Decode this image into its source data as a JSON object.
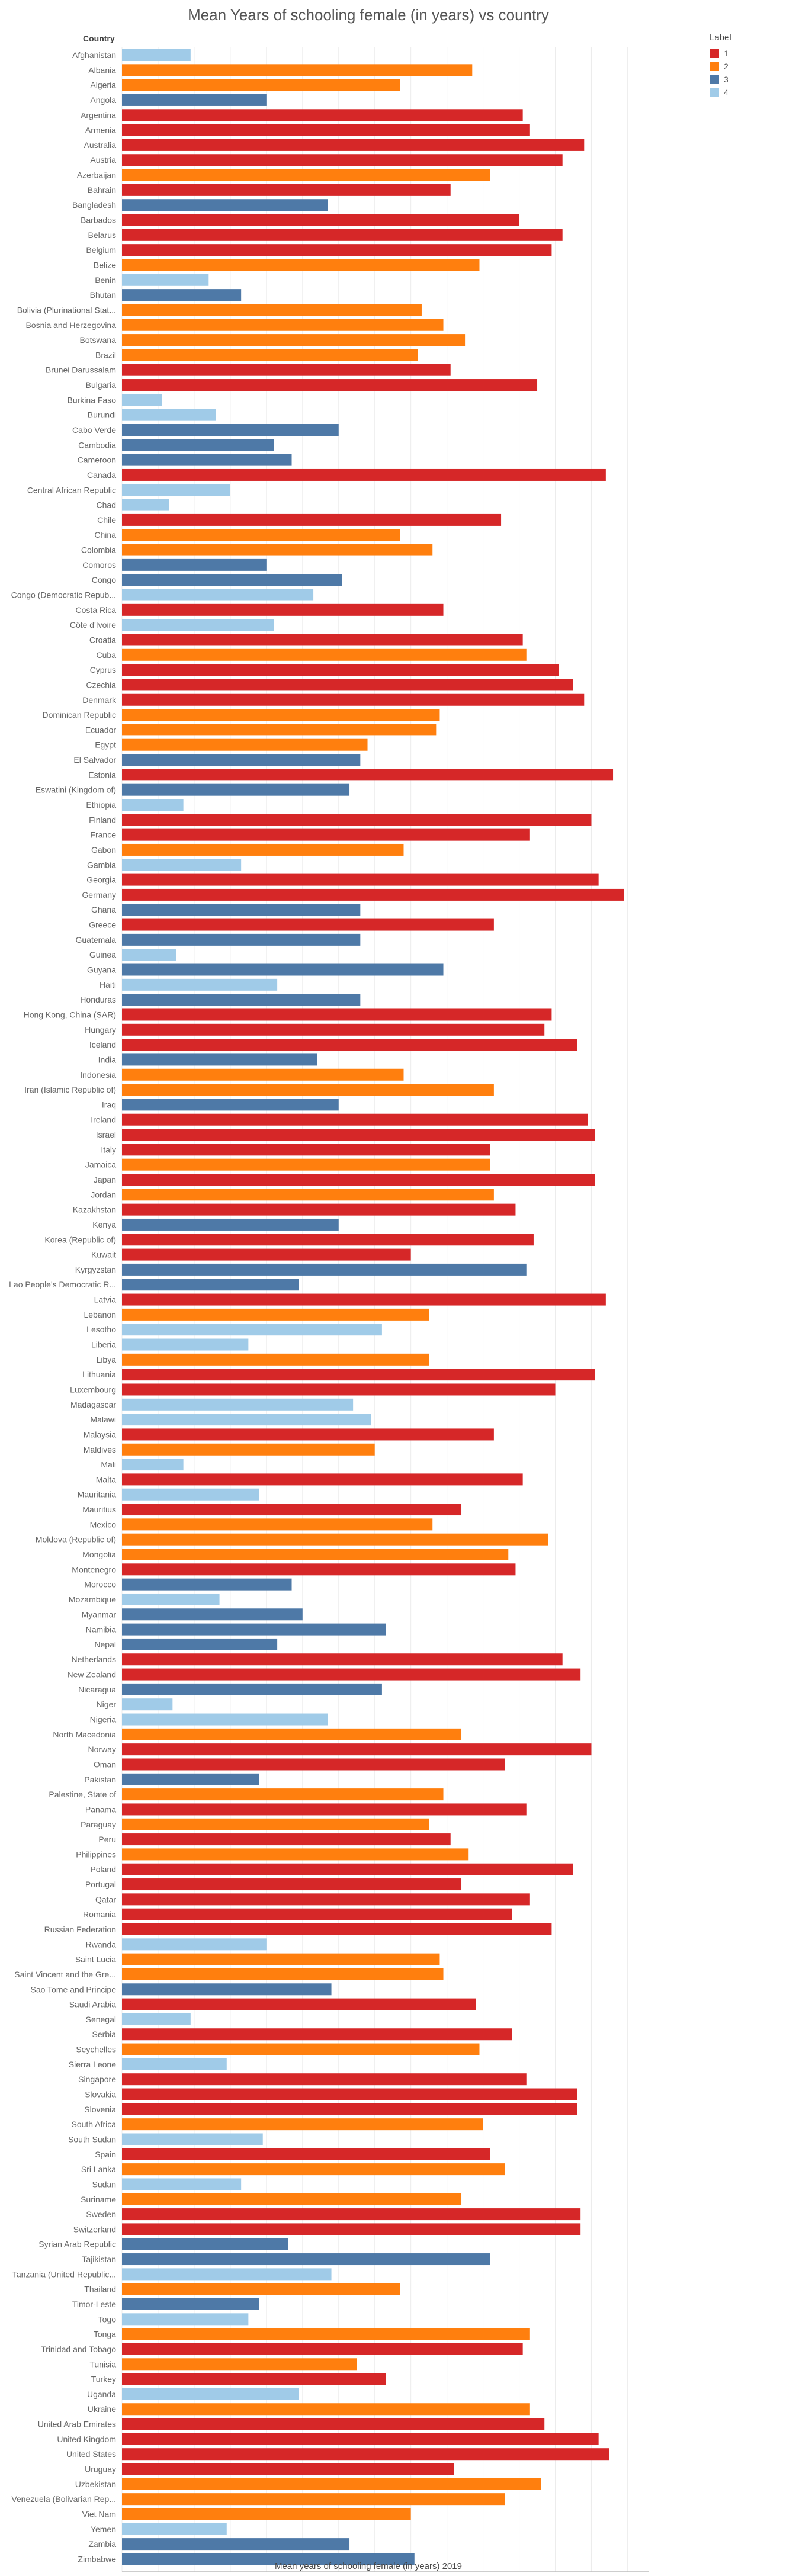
{
  "chart_data": {
    "type": "bar",
    "orientation": "horizontal",
    "title": "Mean Years of schooling female (in years) vs country",
    "row_header": "Country",
    "xlabel": "Mean years of schooling female (in years) 2019",
    "xlim": [
      0,
      14.6
    ],
    "xticks": [
      0,
      1,
      2,
      3,
      4,
      5,
      6,
      7,
      8,
      9,
      10,
      11,
      12,
      13,
      14
    ],
    "grid": "vertical",
    "legend": {
      "title": "Label",
      "position": "top-right",
      "entries": [
        {
          "label": "1",
          "color": "#d62728"
        },
        {
          "label": "2",
          "color": "#ff7f0e"
        },
        {
          "label": "3",
          "color": "#4e79a7"
        },
        {
          "label": "4",
          "color": "#a0cbe8"
        }
      ]
    },
    "categories": [
      "Afghanistan",
      "Albania",
      "Algeria",
      "Angola",
      "Argentina",
      "Armenia",
      "Australia",
      "Austria",
      "Azerbaijan",
      "Bahrain",
      "Bangladesh",
      "Barbados",
      "Belarus",
      "Belgium",
      "Belize",
      "Benin",
      "Bhutan",
      "Bolivia (Plurinational Stat...",
      "Bosnia and Herzegovina",
      "Botswana",
      "Brazil",
      "Brunei Darussalam",
      "Bulgaria",
      "Burkina Faso",
      "Burundi",
      "Cabo Verde",
      "Cambodia",
      "Cameroon",
      "Canada",
      "Central African Republic",
      "Chad",
      "Chile",
      "China",
      "Colombia",
      "Comoros",
      "Congo",
      "Congo (Democratic Repub...",
      "Costa Rica",
      "Côte d'Ivoire",
      "Croatia",
      "Cuba",
      "Cyprus",
      "Czechia",
      "Denmark",
      "Dominican Republic",
      "Ecuador",
      "Egypt",
      "El Salvador",
      "Estonia",
      "Eswatini (Kingdom of)",
      "Ethiopia",
      "Finland",
      "France",
      "Gabon",
      "Gambia",
      "Georgia",
      "Germany",
      "Ghana",
      "Greece",
      "Guatemala",
      "Guinea",
      "Guyana",
      "Haiti",
      "Honduras",
      "Hong Kong, China (SAR)",
      "Hungary",
      "Iceland",
      "India",
      "Indonesia",
      "Iran (Islamic Republic of)",
      "Iraq",
      "Ireland",
      "Israel",
      "Italy",
      "Jamaica",
      "Japan",
      "Jordan",
      "Kazakhstan",
      "Kenya",
      "Korea (Republic of)",
      "Kuwait",
      "Kyrgyzstan",
      "Lao People's Democratic R...",
      "Latvia",
      "Lebanon",
      "Lesotho",
      "Liberia",
      "Libya",
      "Lithuania",
      "Luxembourg",
      "Madagascar",
      "Malawi",
      "Malaysia",
      "Maldives",
      "Mali",
      "Malta",
      "Mauritania",
      "Mauritius",
      "Mexico",
      "Moldova (Republic of)",
      "Mongolia",
      "Montenegro",
      "Morocco",
      "Mozambique",
      "Myanmar",
      "Namibia",
      "Nepal",
      "Netherlands",
      "New Zealand",
      "Nicaragua",
      "Niger",
      "Nigeria",
      "North Macedonia",
      "Norway",
      "Oman",
      "Pakistan",
      "Palestine, State of",
      "Panama",
      "Paraguay",
      "Peru",
      "Philippines",
      "Poland",
      "Portugal",
      "Qatar",
      "Romania",
      "Russian Federation",
      "Rwanda",
      "Saint Lucia",
      "Saint Vincent and the Gre...",
      "Sao Tome and Principe",
      "Saudi Arabia",
      "Senegal",
      "Serbia",
      "Seychelles",
      "Sierra Leone",
      "Singapore",
      "Slovakia",
      "Slovenia",
      "South Africa",
      "South Sudan",
      "Spain",
      "Sri Lanka",
      "Sudan",
      "Suriname",
      "Sweden",
      "Switzerland",
      "Syrian Arab Republic",
      "Tajikistan",
      "Tanzania (United Republic...",
      "Thailand",
      "Timor-Leste",
      "Togo",
      "Tonga",
      "Trinidad and Tobago",
      "Tunisia",
      "Turkey",
      "Uganda",
      "Ukraine",
      "United Arab Emirates",
      "United Kingdom",
      "United States",
      "Uruguay",
      "Uzbekistan",
      "Venezuela (Bolivarian Rep...",
      "Viet Nam",
      "Yemen",
      "Zambia",
      "Zimbabwe"
    ],
    "values": [
      1.9,
      9.7,
      7.7,
      4.0,
      11.1,
      11.3,
      12.8,
      12.2,
      10.2,
      9.1,
      5.7,
      11.0,
      12.2,
      11.9,
      9.9,
      2.4,
      3.3,
      8.3,
      8.9,
      9.5,
      8.2,
      9.1,
      11.5,
      1.1,
      2.6,
      6.0,
      4.2,
      4.7,
      13.4,
      3.0,
      1.3,
      10.5,
      7.7,
      8.6,
      4.0,
      6.1,
      5.3,
      8.9,
      4.2,
      11.1,
      11.2,
      12.1,
      12.5,
      12.8,
      8.8,
      8.7,
      6.8,
      6.6,
      13.6,
      6.3,
      1.7,
      13.0,
      11.3,
      7.8,
      3.3,
      13.2,
      13.9,
      6.6,
      10.3,
      6.6,
      1.5,
      8.9,
      4.3,
      6.6,
      11.9,
      11.7,
      12.6,
      5.4,
      7.8,
      10.3,
      6.0,
      12.9,
      13.1,
      10.2,
      10.2,
      13.1,
      10.3,
      10.9,
      6.0,
      11.4,
      8.0,
      11.2,
      4.9,
      13.4,
      8.5,
      7.2,
      3.5,
      8.5,
      13.1,
      12.0,
      6.4,
      6.9,
      10.3,
      7.0,
      1.7,
      11.1,
      3.8,
      9.4,
      8.6,
      11.8,
      10.7,
      10.9,
      4.7,
      2.7,
      5.0,
      7.3,
      4.3,
      12.2,
      12.7,
      7.2,
      1.4,
      5.7,
      9.4,
      13.0,
      10.6,
      3.8,
      8.9,
      11.2,
      8.5,
      9.1,
      9.6,
      12.5,
      9.4,
      11.3,
      10.8,
      11.9,
      4.0,
      8.8,
      8.9,
      5.8,
      9.8,
      1.9,
      10.8,
      9.9,
      2.9,
      11.2,
      12.6,
      12.6,
      10.0,
      3.9,
      10.2,
      10.6,
      3.3,
      9.4,
      12.7,
      12.7,
      4.6,
      10.2,
      5.8,
      7.7,
      3.8,
      3.5,
      11.3,
      11.1,
      6.5,
      7.3,
      4.9,
      11.3,
      11.7,
      13.2,
      13.5,
      9.2,
      11.6,
      10.6,
      8.0,
      2.9,
      6.3,
      8.1
    ],
    "labels": [
      4,
      2,
      2,
      3,
      1,
      1,
      1,
      1,
      2,
      1,
      3,
      1,
      1,
      1,
      2,
      4,
      3,
      2,
      2,
      2,
      2,
      1,
      1,
      4,
      4,
      3,
      3,
      3,
      1,
      4,
      4,
      1,
      2,
      2,
      3,
      3,
      4,
      1,
      4,
      1,
      2,
      1,
      1,
      1,
      2,
      2,
      2,
      3,
      1,
      3,
      4,
      1,
      1,
      2,
      4,
      1,
      1,
      3,
      1,
      3,
      4,
      3,
      4,
      3,
      1,
      1,
      1,
      3,
      2,
      2,
      3,
      1,
      1,
      1,
      2,
      1,
      2,
      1,
      3,
      1,
      1,
      3,
      3,
      1,
      2,
      4,
      4,
      2,
      1,
      1,
      4,
      4,
      1,
      2,
      4,
      1,
      4,
      1,
      2,
      2,
      2,
      1,
      3,
      4,
      3,
      3,
      3,
      1,
      1,
      3,
      4,
      4,
      2,
      1,
      1,
      3,
      2,
      1,
      2,
      1,
      2,
      1,
      1,
      1,
      1,
      1,
      4,
      2,
      2,
      3,
      1,
      4,
      1,
      2,
      4,
      1,
      1,
      1,
      2,
      4,
      1,
      2,
      4,
      2,
      1,
      1,
      3,
      3,
      4,
      2,
      3,
      4,
      2,
      1,
      2,
      1,
      4,
      2,
      1,
      1,
      1,
      1,
      2,
      2,
      2,
      4,
      3,
      3
    ]
  }
}
